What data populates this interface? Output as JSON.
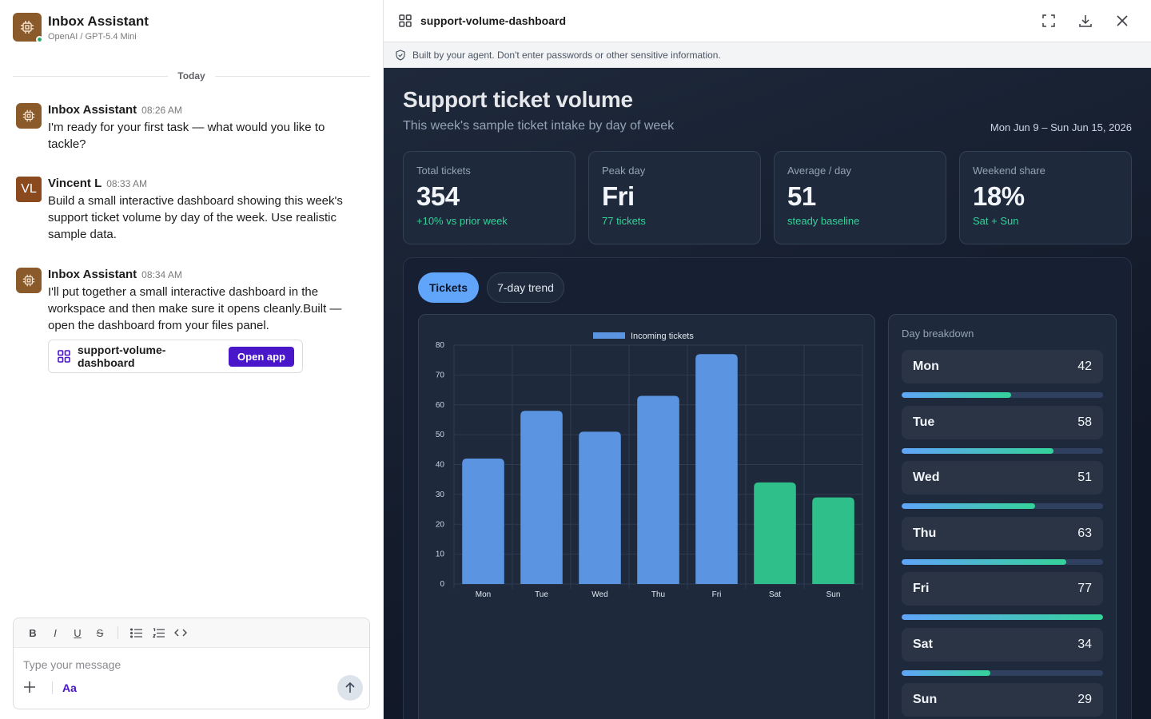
{
  "chat": {
    "title": "Inbox Assistant",
    "subtitle": "OpenAI / GPT-5.4 Mini",
    "divider": "Today",
    "messages": [
      {
        "author": "Inbox Assistant",
        "time": "08:26 AM",
        "text": "I'm ready for your first task — what would you like to tackle?"
      },
      {
        "author": "Vincent L",
        "initials": "VL",
        "time": "08:33 AM",
        "text": "Build a small interactive dashboard showing this week's support ticket volume by day of the week. Use realistic sample data."
      },
      {
        "author": "Inbox Assistant",
        "time": "08:34 AM",
        "text": "I'll put together a small interactive dashboard in the workspace and then make sure it opens cleanly.Built — open the dashboard from your files panel."
      }
    ],
    "app_card": {
      "name": "support-volume-dashboard",
      "button": "Open app"
    },
    "composer": {
      "placeholder": "Type your message",
      "format_label": "Aa",
      "bold": "B",
      "italic": "I",
      "underline": "U",
      "strike": "S"
    }
  },
  "panel": {
    "file_name": "support-volume-dashboard",
    "notice": "Built by your agent. Don't enter passwords or other sensitive information."
  },
  "dashboard": {
    "title": "Support ticket volume",
    "subtitle": "This week's sample ticket intake by day of week",
    "date_range": "Mon Jun 9 – Sun Jun 15, 2026",
    "kpis": [
      {
        "label": "Total tickets",
        "value": "354",
        "sub": "+10% vs prior week"
      },
      {
        "label": "Peak day",
        "value": "Fri",
        "sub": "77 tickets"
      },
      {
        "label": "Average / day",
        "value": "51",
        "sub": "steady baseline"
      },
      {
        "label": "Weekend share",
        "value": "18%",
        "sub": "Sat + Sun"
      }
    ],
    "tabs": [
      "Tickets",
      "7-day trend"
    ],
    "breakdown_title": "Day breakdown",
    "breakdown": [
      {
        "day": "Mon",
        "value": "42",
        "fraction": 0.545
      },
      {
        "day": "Tue",
        "value": "58",
        "fraction": 0.753
      },
      {
        "day": "Wed",
        "value": "51",
        "fraction": 0.662
      },
      {
        "day": "Thu",
        "value": "63",
        "fraction": 0.818
      },
      {
        "day": "Fri",
        "value": "77",
        "fraction": 1.0
      },
      {
        "day": "Sat",
        "value": "34",
        "fraction": 0.442
      },
      {
        "day": "Sun",
        "value": "29",
        "fraction": 0.377
      }
    ]
  },
  "colors": {
    "weekday_bar": "#5b94e0",
    "weekend_bar": "#2fbf8a",
    "accent": "#4a16c9"
  },
  "chart_data": {
    "type": "bar",
    "categories": [
      "Mon",
      "Tue",
      "Wed",
      "Thu",
      "Fri",
      "Sat",
      "Sun"
    ],
    "series": [
      {
        "name": "Incoming tickets",
        "values": [
          42,
          58,
          51,
          63,
          77,
          34,
          29
        ]
      }
    ],
    "ylim": [
      0,
      80
    ],
    "yticks": [
      0,
      10,
      20,
      30,
      40,
      50,
      60,
      70,
      80
    ],
    "grid": true,
    "legend": "top-center"
  }
}
